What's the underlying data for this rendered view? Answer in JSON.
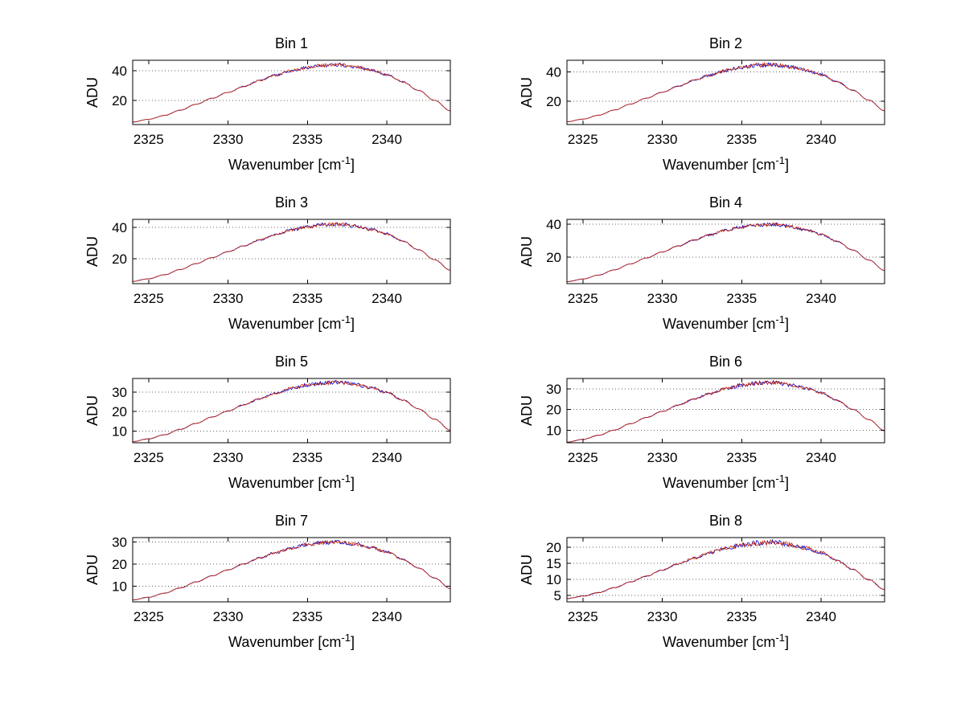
{
  "figure": {
    "background": "#ffffff",
    "series_colors": [
      "#0000cc",
      "#cc2200"
    ],
    "grid_color": "#666666",
    "axis_color": "#000000"
  },
  "shared": {
    "xlabel_base": "Wavenumber [cm",
    "xlabel_sup": "-1",
    "xlabel_close": "]",
    "ylabel": "ADU"
  },
  "chart_data": [
    {
      "type": "line",
      "title": "Bin 1",
      "xlabel": "Wavenumber [cm^-1]",
      "ylabel": "ADU",
      "xlim": [
        2324,
        2344
      ],
      "ylim": [
        4,
        47
      ],
      "xticks": [
        2325,
        2330,
        2335,
        2340
      ],
      "yticks": [
        20,
        40
      ],
      "grid": true,
      "legend": "none",
      "x": [
        2324,
        2325,
        2326,
        2327,
        2328,
        2329,
        2330,
        2331,
        2332,
        2333,
        2334,
        2335,
        2336,
        2337,
        2338,
        2339,
        2340,
        2341,
        2342,
        2343,
        2344
      ],
      "y": [
        5.7,
        7.5,
        10.1,
        13.6,
        17.6,
        21.6,
        25.5,
        29.5,
        33.4,
        37.0,
        40.0,
        42.2,
        43.6,
        44.0,
        42.7,
        40.5,
        37.4,
        32.6,
        26.8,
        20.2,
        13.2
      ],
      "noise": 1.1
    },
    {
      "type": "line",
      "title": "Bin 2",
      "xlabel": "Wavenumber [cm^-1]",
      "ylabel": "ADU",
      "xlim": [
        2324,
        2344
      ],
      "ylim": [
        4,
        48
      ],
      "xticks": [
        2325,
        2330,
        2335,
        2340
      ],
      "yticks": [
        20,
        40
      ],
      "grid": true,
      "legend": "none",
      "x": [
        2324,
        2325,
        2326,
        2327,
        2328,
        2329,
        2330,
        2331,
        2332,
        2333,
        2334,
        2335,
        2336,
        2337,
        2338,
        2339,
        2340,
        2341,
        2342,
        2343,
        2344
      ],
      "y": [
        5.9,
        7.7,
        10.4,
        14.0,
        18.0,
        22.1,
        26.1,
        30.2,
        34.2,
        37.8,
        41.0,
        43.2,
        44.6,
        45.0,
        43.7,
        41.4,
        38.3,
        33.3,
        27.5,
        20.7,
        13.5
      ],
      "noise": 1.4
    },
    {
      "type": "line",
      "title": "Bin 3",
      "xlabel": "Wavenumber [cm^-1]",
      "ylabel": "ADU",
      "xlim": [
        2324,
        2344
      ],
      "ylim": [
        4,
        45
      ],
      "xticks": [
        2325,
        2330,
        2335,
        2340
      ],
      "yticks": [
        20,
        40
      ],
      "grid": true,
      "legend": "none",
      "x": [
        2324,
        2325,
        2326,
        2327,
        2328,
        2329,
        2330,
        2331,
        2332,
        2333,
        2334,
        2335,
        2336,
        2337,
        2338,
        2339,
        2340,
        2341,
        2342,
        2343,
        2344
      ],
      "y": [
        5.5,
        7.1,
        9.7,
        13.0,
        16.8,
        20.6,
        24.4,
        28.1,
        31.9,
        35.3,
        38.2,
        40.3,
        41.6,
        42.0,
        40.7,
        38.6,
        35.7,
        31.1,
        25.6,
        19.3,
        12.6
      ],
      "noise": 1.1
    },
    {
      "type": "line",
      "title": "Bin 4",
      "xlabel": "Wavenumber [cm^-1]",
      "ylabel": "ADU",
      "xlim": [
        2324,
        2344
      ],
      "ylim": [
        4,
        43
      ],
      "xticks": [
        2325,
        2330,
        2335,
        2340
      ],
      "yticks": [
        20,
        40
      ],
      "grid": true,
      "legend": "none",
      "x": [
        2324,
        2325,
        2326,
        2327,
        2328,
        2329,
        2330,
        2331,
        2332,
        2333,
        2334,
        2335,
        2336,
        2337,
        2338,
        2339,
        2340,
        2341,
        2342,
        2343,
        2344
      ],
      "y": [
        5.2,
        6.8,
        9.2,
        12.4,
        16.0,
        19.6,
        23.2,
        26.8,
        30.4,
        33.6,
        36.4,
        38.4,
        39.6,
        40.0,
        38.8,
        36.8,
        34.0,
        29.6,
        24.4,
        18.4,
        12.0
      ],
      "noise": 1.0
    },
    {
      "type": "line",
      "title": "Bin 5",
      "xlabel": "Wavenumber [cm^-1]",
      "ylabel": "ADU",
      "xlim": [
        2324,
        2344
      ],
      "ylim": [
        4,
        37
      ],
      "xticks": [
        2325,
        2330,
        2335,
        2340
      ],
      "yticks": [
        10,
        20,
        30
      ],
      "grid": true,
      "legend": "none",
      "x": [
        2324,
        2325,
        2326,
        2327,
        2328,
        2329,
        2330,
        2331,
        2332,
        2333,
        2334,
        2335,
        2336,
        2337,
        2338,
        2339,
        2340,
        2341,
        2342,
        2343,
        2344
      ],
      "y": [
        4.6,
        6.0,
        8.1,
        10.9,
        14.0,
        17.2,
        20.3,
        23.5,
        26.6,
        29.4,
        31.9,
        33.6,
        34.7,
        35.0,
        34.0,
        32.2,
        29.8,
        25.9,
        21.4,
        16.1,
        10.5
      ],
      "noise": 0.9
    },
    {
      "type": "line",
      "title": "Bin 6",
      "xlabel": "Wavenumber [cm^-1]",
      "ylabel": "ADU",
      "xlim": [
        2324,
        2344
      ],
      "ylim": [
        4,
        35
      ],
      "xticks": [
        2325,
        2330,
        2335,
        2340
      ],
      "yticks": [
        10,
        20,
        30
      ],
      "grid": true,
      "legend": "none",
      "x": [
        2324,
        2325,
        2326,
        2327,
        2328,
        2329,
        2330,
        2331,
        2332,
        2333,
        2334,
        2335,
        2336,
        2337,
        2338,
        2339,
        2340,
        2341,
        2342,
        2343,
        2344
      ],
      "y": [
        4.3,
        5.6,
        7.6,
        10.2,
        13.2,
        16.2,
        19.1,
        22.1,
        25.1,
        27.7,
        30.0,
        31.7,
        32.7,
        33.0,
        32.0,
        30.4,
        28.1,
        24.4,
        20.1,
        15.2,
        9.9
      ],
      "noise": 0.9
    },
    {
      "type": "line",
      "title": "Bin 7",
      "xlabel": "Wavenumber [cm^-1]",
      "ylabel": "ADU",
      "xlim": [
        2324,
        2344
      ],
      "ylim": [
        3,
        32
      ],
      "xticks": [
        2325,
        2330,
        2335,
        2340
      ],
      "yticks": [
        10,
        20,
        30
      ],
      "grid": true,
      "legend": "none",
      "x": [
        2324,
        2325,
        2326,
        2327,
        2328,
        2329,
        2330,
        2331,
        2332,
        2333,
        2334,
        2335,
        2336,
        2337,
        2338,
        2339,
        2340,
        2341,
        2342,
        2343,
        2344
      ],
      "y": [
        3.9,
        5.1,
        6.9,
        9.3,
        12.0,
        14.7,
        17.4,
        20.1,
        22.8,
        25.2,
        27.3,
        28.8,
        29.7,
        30.0,
        29.1,
        27.6,
        25.5,
        22.2,
        18.3,
        13.8,
        9.0
      ],
      "noise": 0.8
    },
    {
      "type": "line",
      "title": "Bin 8",
      "xlabel": "Wavenumber [cm^-1]",
      "ylabel": "ADU",
      "xlim": [
        2324,
        2344
      ],
      "ylim": [
        3,
        23
      ],
      "xticks": [
        2325,
        2330,
        2335,
        2340
      ],
      "yticks": [
        5,
        10,
        15,
        20
      ],
      "grid": true,
      "legend": "none",
      "x": [
        2324,
        2325,
        2326,
        2327,
        2328,
        2329,
        2330,
        2331,
        2332,
        2333,
        2334,
        2335,
        2336,
        2337,
        2338,
        2339,
        2340,
        2341,
        2342,
        2343,
        2344
      ],
      "y": [
        4.0,
        4.8,
        5.9,
        7.4,
        9.2,
        11.0,
        12.9,
        14.8,
        16.6,
        18.3,
        19.7,
        20.7,
        21.3,
        21.5,
        20.9,
        19.8,
        18.3,
        15.9,
        13.1,
        9.9,
        6.8
      ],
      "noise": 0.7
    }
  ]
}
